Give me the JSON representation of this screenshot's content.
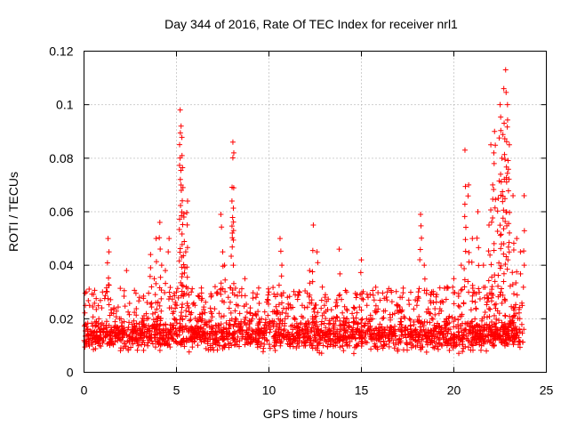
{
  "chart_data": {
    "type": "scatter",
    "title": "Day 344 of 2016, Rate Of TEC Index for receiver nrl1",
    "xlabel": "GPS time / hours",
    "ylabel": "ROTI / TECUs",
    "xlim": [
      0,
      25
    ],
    "ylim": [
      0,
      0.12
    ],
    "xticks": [
      0,
      5,
      10,
      15,
      20,
      25
    ],
    "xtick_labels": [
      "0",
      "5",
      "10",
      "15",
      "20",
      "25"
    ],
    "yticks": [
      0,
      0.02,
      0.04,
      0.06,
      0.08,
      0.1,
      0.12
    ],
    "ytick_labels": [
      "0",
      "0.02",
      "0.04",
      "0.06",
      "0.08",
      "0.1",
      "0.12"
    ],
    "grid": true,
    "marker": "plus",
    "color": "#ff0000",
    "series": [
      {
        "name": "ROTI",
        "x": [
          0.1,
          0.3,
          0.5,
          0.8,
          1.0,
          1.3,
          1.35,
          1.6,
          2.0,
          2.3,
          2.6,
          3.0,
          3.4,
          3.6,
          3.8,
          3.9,
          4.0,
          4.1,
          4.2,
          4.4,
          4.6,
          4.8,
          5.0,
          5.2,
          5.25,
          5.3,
          5.35,
          5.4,
          5.5,
          5.6,
          5.8,
          6.0,
          6.3,
          6.6,
          6.9,
          7.2,
          7.4,
          7.5,
          7.6,
          7.8,
          8.0,
          8.05,
          8.1,
          8.4,
          8.7,
          9.0,
          9.3,
          9.6,
          10.0,
          10.4,
          10.6,
          10.7,
          11.0,
          11.4,
          11.8,
          12.2,
          12.4,
          12.6,
          13.0,
          13.4,
          13.8,
          14.2,
          14.5,
          14.8,
          15.0,
          15.3,
          15.6,
          16.0,
          16.4,
          16.8,
          17.2,
          17.6,
          18.0,
          18.2,
          18.4,
          18.8,
          19.2,
          19.6,
          20.0,
          20.4,
          20.6,
          20.8,
          21.0,
          21.3,
          21.6,
          21.9,
          22.0,
          22.1,
          22.2,
          22.4,
          22.5,
          22.6,
          22.7,
          22.8,
          22.9,
          23.0,
          23.2,
          23.4,
          23.6,
          23.8
        ],
        "y": [
          0.018,
          0.025,
          0.015,
          0.02,
          0.03,
          0.05,
          0.045,
          0.022,
          0.02,
          0.038,
          0.018,
          0.028,
          0.02,
          0.044,
          0.035,
          0.05,
          0.026,
          0.056,
          0.04,
          0.038,
          0.05,
          0.022,
          0.03,
          0.098,
          0.092,
          0.081,
          0.069,
          0.058,
          0.045,
          0.064,
          0.03,
          0.025,
          0.02,
          0.018,
          0.022,
          0.03,
          0.059,
          0.045,
          0.04,
          0.028,
          0.064,
          0.086,
          0.082,
          0.03,
          0.035,
          0.022,
          0.028,
          0.02,
          0.03,
          0.022,
          0.05,
          0.04,
          0.028,
          0.02,
          0.025,
          0.038,
          0.055,
          0.045,
          0.025,
          0.02,
          0.046,
          0.03,
          0.022,
          0.018,
          0.042,
          0.025,
          0.02,
          0.018,
          0.03,
          0.022,
          0.028,
          0.02,
          0.025,
          0.059,
          0.04,
          0.03,
          0.022,
          0.02,
          0.035,
          0.04,
          0.083,
          0.07,
          0.05,
          0.06,
          0.04,
          0.055,
          0.085,
          0.07,
          0.09,
          0.065,
          0.1,
          0.08,
          0.106,
          0.113,
          0.1,
          0.085,
          0.066,
          0.05,
          0.045,
          0.066
        ]
      }
    ],
    "background_band": {
      "description": "dense cloud of points between about 0.005 and 0.03 across 0 to 23.8 hours",
      "x_range": [
        0,
        23.8
      ],
      "y_center": 0.014,
      "y_spread": 0.008
    }
  }
}
